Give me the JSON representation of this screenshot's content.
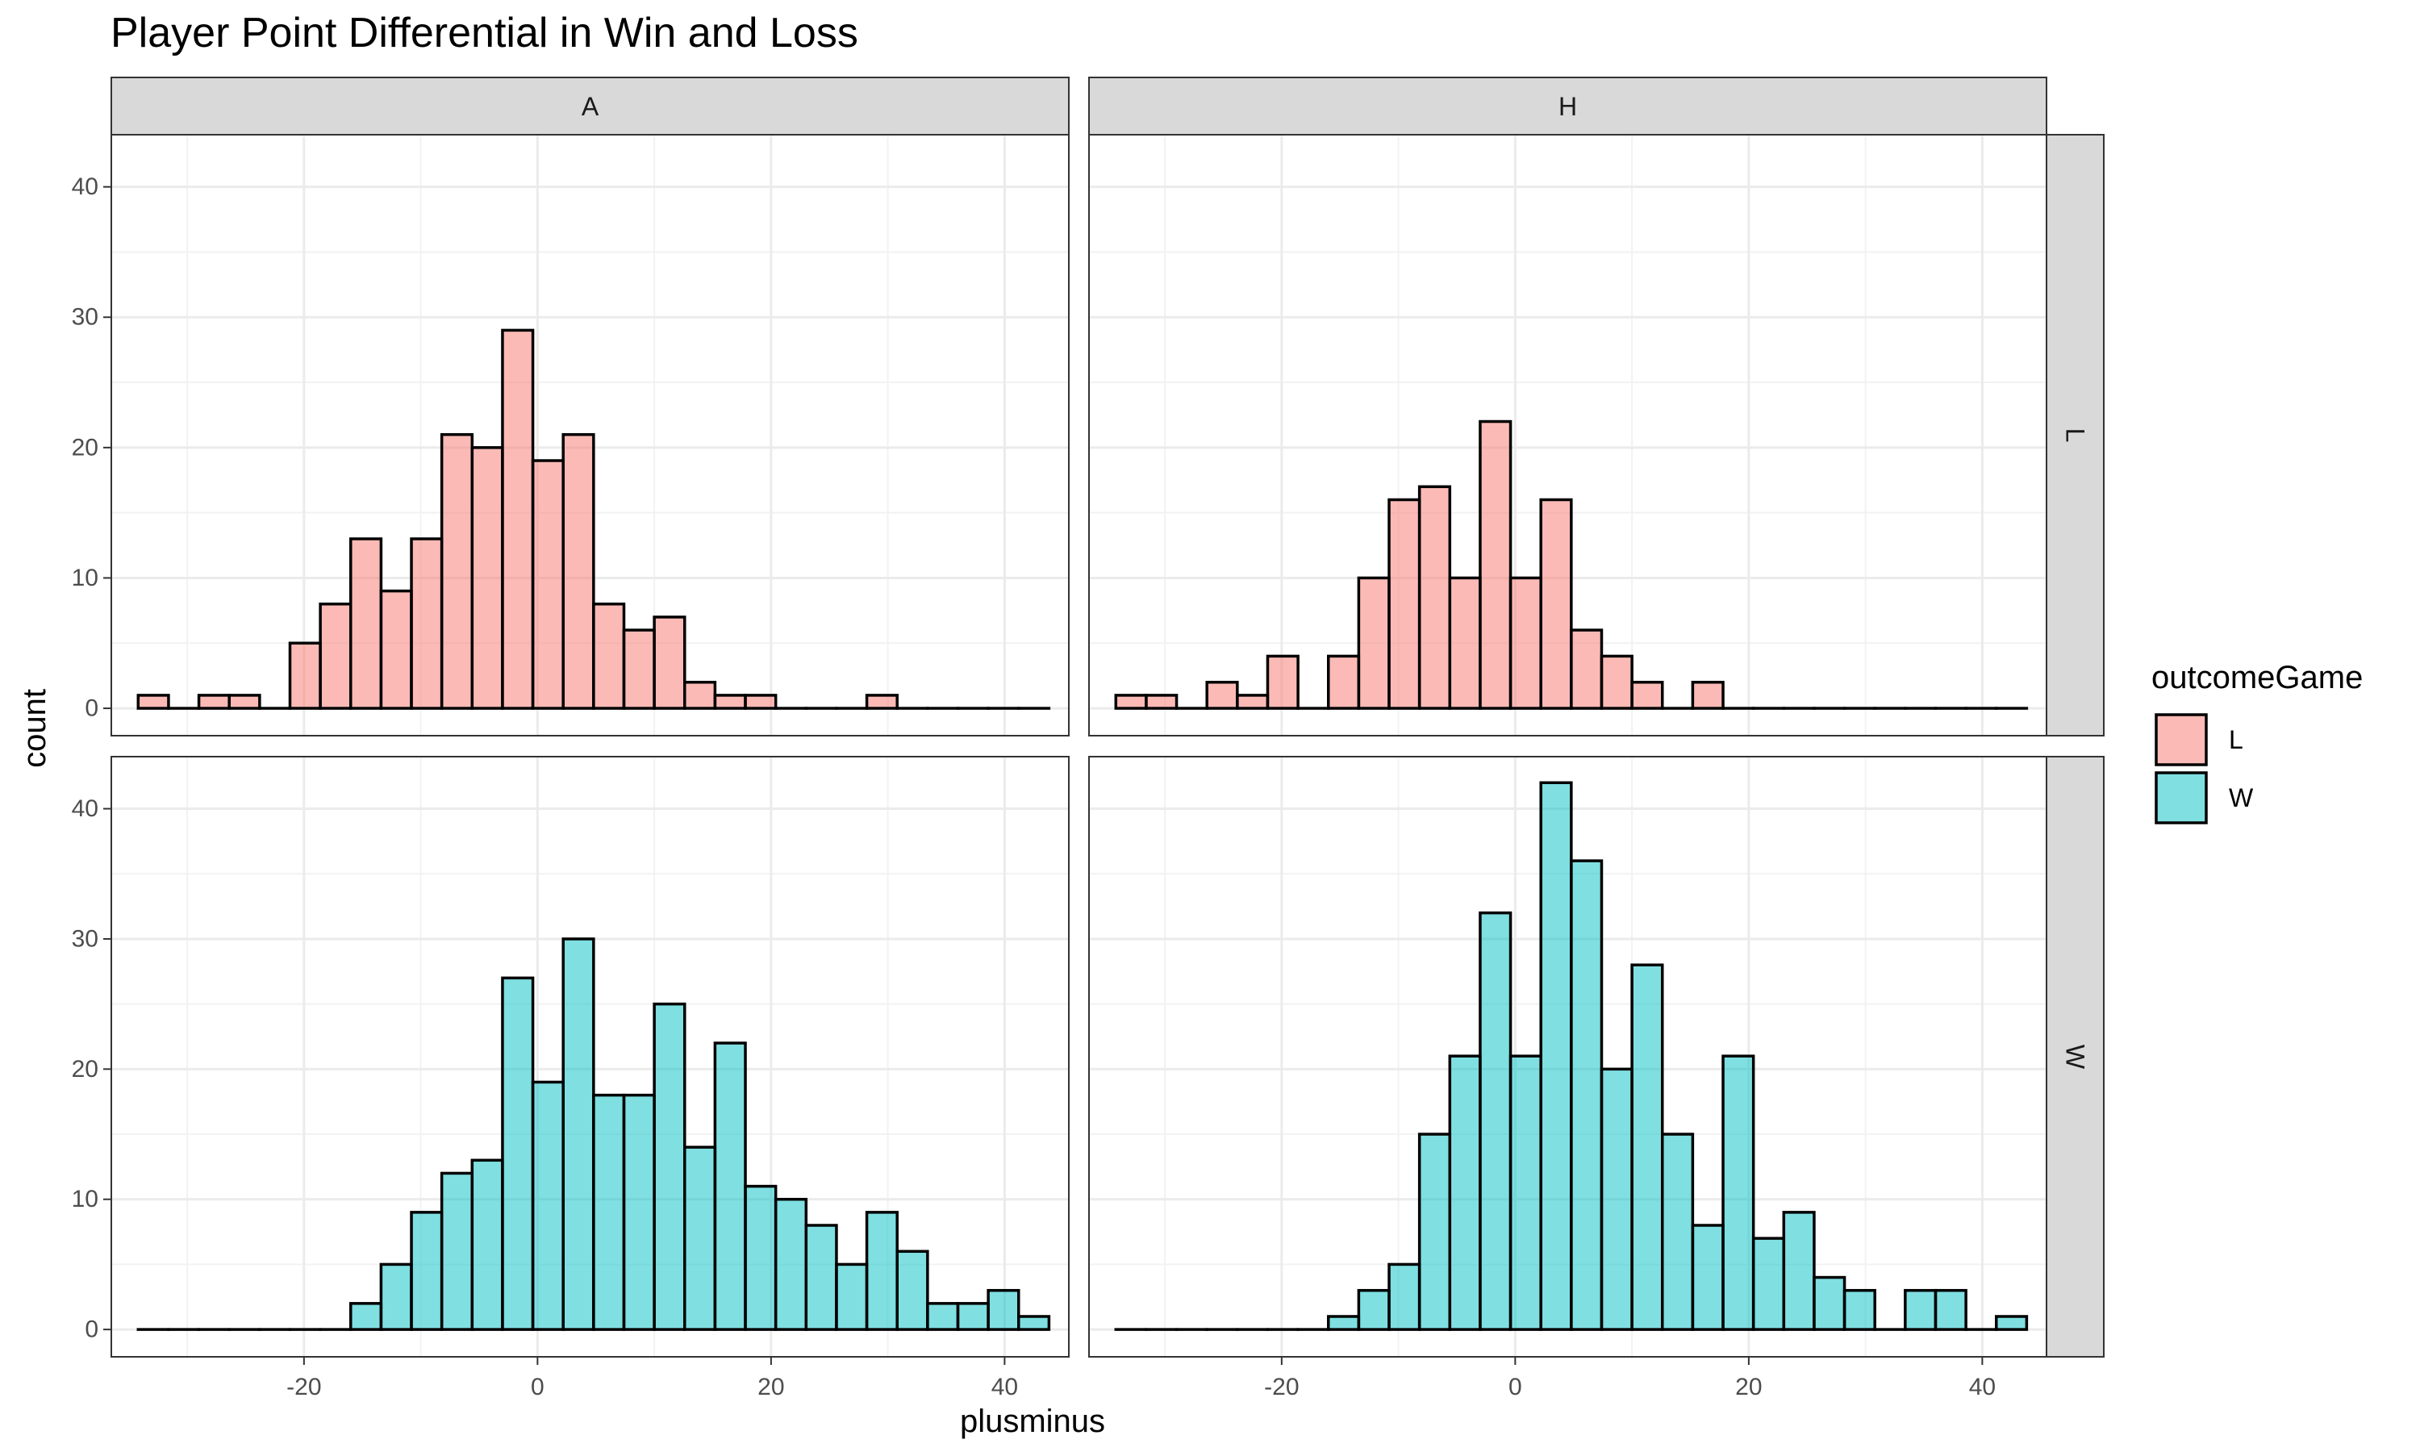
{
  "chart_data": {
    "type": "bar",
    "title": "Player Point Differential in Win and Loss",
    "xlabel": "plusminus",
    "ylabel": "count",
    "xlim": [
      -36.5,
      45.5
    ],
    "ylim": [
      -2.1,
      44
    ],
    "x_ticks": [
      -20,
      0,
      20,
      40
    ],
    "y_ticks": [
      0,
      10,
      20,
      30,
      40
    ],
    "grid": true,
    "legend_position": "right",
    "legend": {
      "title": "outcomeGame",
      "entries": [
        {
          "label": "L",
          "color": "#F8766D"
        },
        {
          "label": "W",
          "color": "#00BFC4"
        }
      ]
    },
    "facet_cols": [
      "A",
      "H"
    ],
    "facet_rows": [
      "L",
      "W"
    ],
    "bins": {
      "start": -34.2,
      "width": 2.6,
      "centers": [
        -32.9,
        -30.3,
        -27.7,
        -25.1,
        -22.5,
        -19.9,
        -17.3,
        -14.7,
        -12.1,
        -9.5,
        -6.9,
        -4.3,
        -1.7,
        0.9,
        3.5,
        6.1,
        8.7,
        11.3,
        13.9,
        16.5,
        19.1,
        21.7,
        24.3,
        26.9,
        29.5,
        32.1,
        34.7,
        37.3,
        39.9,
        42.5
      ]
    },
    "panels": [
      {
        "col": "A",
        "row": "L",
        "fill": "#F8766D",
        "counts": [
          1,
          0,
          1,
          1,
          0,
          5,
          8,
          13,
          9,
          13,
          21,
          20,
          29,
          19,
          21,
          8,
          6,
          7,
          2,
          1,
          1,
          0,
          0,
          0,
          1,
          0,
          0,
          0,
          0,
          0
        ]
      },
      {
        "col": "H",
        "row": "L",
        "fill": "#F8766D",
        "counts": [
          1,
          1,
          0,
          2,
          1,
          4,
          0,
          4,
          10,
          16,
          17,
          10,
          22,
          10,
          16,
          6,
          4,
          2,
          0,
          2,
          0,
          0,
          0,
          0,
          0,
          0,
          0,
          0,
          0,
          0
        ]
      },
      {
        "col": "A",
        "row": "W",
        "fill": "#00BFC4",
        "counts": [
          0,
          0,
          0,
          0,
          0,
          0,
          0,
          2,
          5,
          9,
          12,
          13,
          27,
          19,
          30,
          18,
          18,
          25,
          14,
          22,
          11,
          10,
          8,
          5,
          9,
          6,
          2,
          2,
          3,
          1
        ]
      },
      {
        "col": "H",
        "row": "W",
        "fill": "#00BFC4",
        "counts": [
          0,
          0,
          0,
          0,
          0,
          0,
          0,
          1,
          3,
          5,
          15,
          21,
          32,
          21,
          42,
          36,
          20,
          28,
          15,
          8,
          21,
          7,
          9,
          4,
          3,
          0,
          3,
          3,
          0,
          1
        ]
      }
    ]
  }
}
